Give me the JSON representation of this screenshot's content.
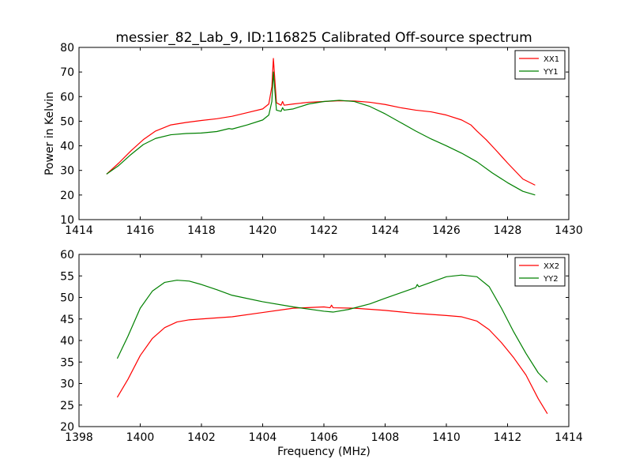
{
  "chart_data": [
    {
      "type": "line",
      "title": "messier_82_Lab_9, ID:116825 Calibrated Off-source spectrum",
      "xlabel": "",
      "ylabel": "Power in Kelvin",
      "xlim": [
        1414,
        1430
      ],
      "ylim": [
        10,
        80
      ],
      "xticks": [
        1414,
        1416,
        1418,
        1420,
        1422,
        1424,
        1426,
        1428,
        1430
      ],
      "yticks": [
        10,
        20,
        30,
        40,
        50,
        60,
        70,
        80
      ],
      "legend_position": "top-right",
      "series": [
        {
          "name": "XX1",
          "color": "#ff0000",
          "x": [
            1414.9,
            1415.3,
            1415.7,
            1416.1,
            1416.5,
            1417.0,
            1417.5,
            1418.0,
            1418.5,
            1419.0,
            1419.5,
            1420.0,
            1420.2,
            1420.3,
            1420.35,
            1420.45,
            1420.6,
            1420.65,
            1420.7,
            1421.0,
            1421.5,
            1422.0,
            1422.5,
            1423.0,
            1423.5,
            1424.0,
            1424.5,
            1425.0,
            1425.5,
            1426.0,
            1426.5,
            1426.8,
            1427.0,
            1427.3,
            1427.6,
            1428.0,
            1428.5,
            1428.9
          ],
          "values": [
            28.5,
            33.0,
            38.0,
            42.5,
            46.0,
            48.5,
            49.5,
            50.3,
            51.0,
            52.0,
            53.5,
            55.0,
            57.0,
            64.0,
            75.5,
            57.5,
            56.5,
            58.0,
            56.5,
            57.0,
            57.7,
            58.0,
            58.3,
            58.2,
            57.7,
            56.8,
            55.5,
            54.5,
            53.8,
            52.5,
            50.5,
            48.5,
            46.0,
            42.5,
            38.5,
            33.0,
            26.5,
            24.0
          ]
        },
        {
          "name": "YY1",
          "color": "#008000",
          "x": [
            1414.9,
            1415.3,
            1415.7,
            1416.1,
            1416.5,
            1417.0,
            1417.5,
            1418.0,
            1418.5,
            1418.9,
            1419.0,
            1419.5,
            1420.0,
            1420.2,
            1420.3,
            1420.35,
            1420.45,
            1420.6,
            1420.65,
            1420.7,
            1421.0,
            1421.5,
            1422.0,
            1422.5,
            1423.0,
            1423.5,
            1424.0,
            1424.5,
            1425.0,
            1425.5,
            1426.0,
            1426.5,
            1427.0,
            1427.5,
            1428.0,
            1428.5,
            1428.9
          ],
          "values": [
            28.5,
            32.0,
            36.5,
            40.5,
            43.0,
            44.5,
            45.0,
            45.2,
            45.8,
            47.0,
            46.8,
            48.5,
            50.5,
            52.5,
            58.0,
            70.0,
            54.5,
            54.0,
            55.5,
            54.5,
            55.0,
            57.0,
            58.0,
            58.5,
            58.0,
            56.0,
            53.0,
            49.5,
            46.0,
            42.8,
            40.0,
            37.0,
            33.5,
            29.0,
            25.0,
            21.5,
            20.0
          ]
        }
      ]
    },
    {
      "type": "line",
      "title": "",
      "xlabel": "Frequency (MHz)",
      "ylabel": "",
      "xlim": [
        1398,
        1414
      ],
      "ylim": [
        20,
        60
      ],
      "xticks": [
        1398,
        1400,
        1402,
        1404,
        1406,
        1408,
        1410,
        1412,
        1414
      ],
      "yticks": [
        20,
        25,
        30,
        35,
        40,
        45,
        50,
        55,
        60
      ],
      "legend_position": "top-right",
      "series": [
        {
          "name": "XX2",
          "color": "#ff0000",
          "x": [
            1399.25,
            1399.6,
            1400.0,
            1400.4,
            1400.8,
            1401.2,
            1401.6,
            1402.0,
            1403.0,
            1404.0,
            1405.0,
            1406.0,
            1406.2,
            1406.25,
            1406.3,
            1407.0,
            1408.0,
            1409.0,
            1410.0,
            1410.5,
            1411.0,
            1411.4,
            1411.8,
            1412.2,
            1412.6,
            1413.0,
            1413.3
          ],
          "values": [
            26.8,
            31.0,
            36.5,
            40.5,
            43.0,
            44.3,
            44.8,
            45.0,
            45.5,
            46.5,
            47.5,
            47.8,
            47.6,
            48.2,
            47.6,
            47.5,
            47.0,
            46.3,
            45.8,
            45.5,
            44.5,
            42.5,
            39.5,
            36.0,
            32.0,
            26.5,
            23.0
          ]
        },
        {
          "name": "YY2",
          "color": "#008000",
          "x": [
            1399.25,
            1399.6,
            1400.0,
            1400.4,
            1400.8,
            1401.2,
            1401.6,
            1402.0,
            1402.5,
            1403.0,
            1404.0,
            1405.0,
            1406.0,
            1406.3,
            1406.8,
            1407.5,
            1408.0,
            1409.0,
            1409.05,
            1409.1,
            1410.0,
            1410.5,
            1411.0,
            1411.4,
            1411.8,
            1412.2,
            1412.6,
            1413.0,
            1413.3
          ],
          "values": [
            35.8,
            41.0,
            47.5,
            51.5,
            53.5,
            54.0,
            53.8,
            53.0,
            51.8,
            50.5,
            49.0,
            47.8,
            46.8,
            46.6,
            47.2,
            48.5,
            49.8,
            52.3,
            53.0,
            52.5,
            54.8,
            55.2,
            54.8,
            52.5,
            47.5,
            42.0,
            37.0,
            32.5,
            30.3
          ]
        }
      ]
    }
  ]
}
